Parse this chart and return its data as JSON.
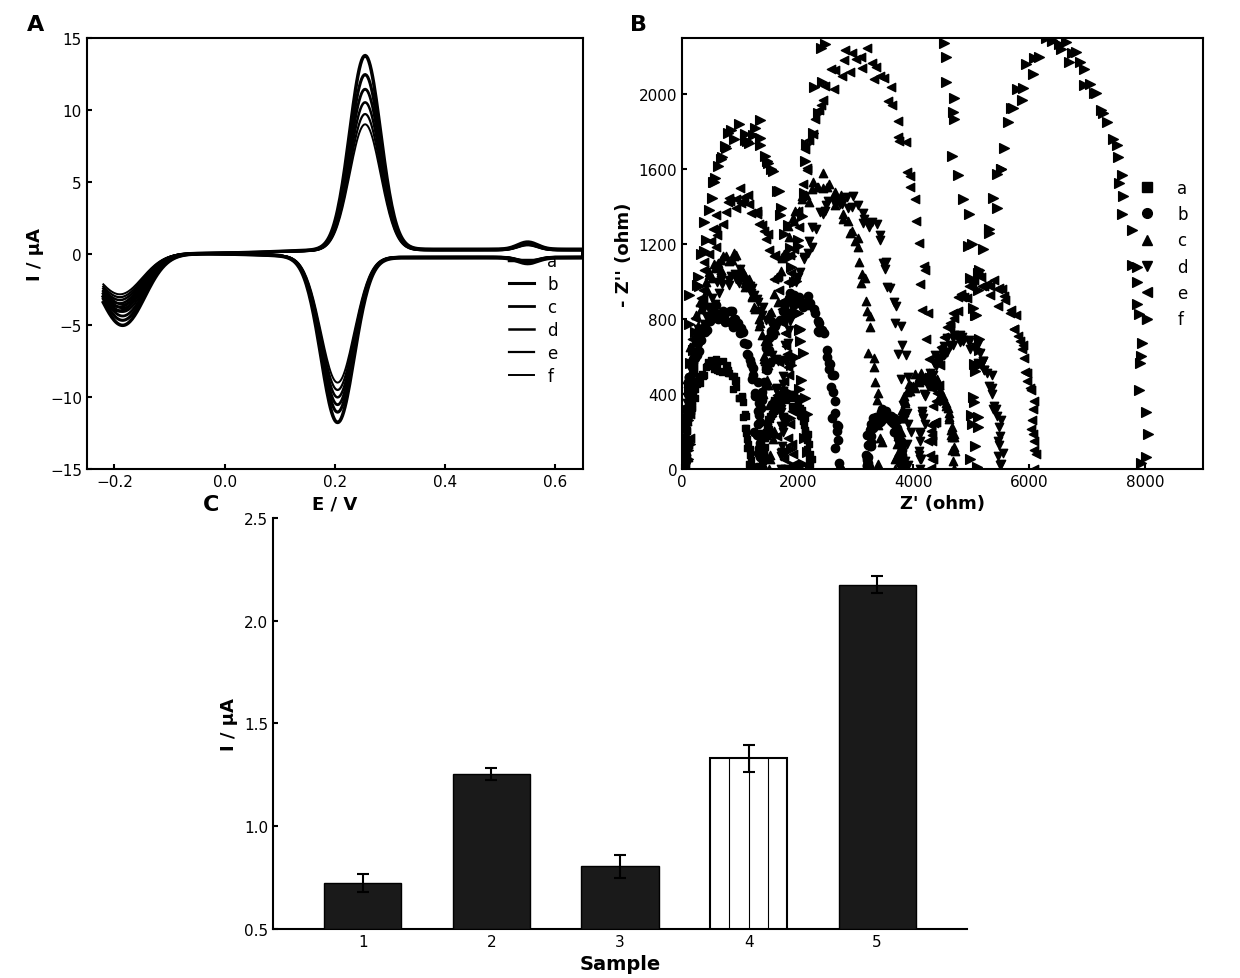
{
  "panel_A_label": "A",
  "panel_B_label": "B",
  "panel_C_label": "C",
  "cv_xlim": [
    -0.25,
    0.65
  ],
  "cv_ylim": [
    -15,
    15
  ],
  "cv_xlabel": "E / V",
  "cv_ylabel": "I / μA",
  "cv_xticks": [
    -0.2,
    0.0,
    0.2,
    0.4,
    0.6
  ],
  "cv_yticks": [
    -15,
    -10,
    -5,
    0,
    5,
    10,
    15
  ],
  "cv_legend_labels": [
    "a",
    "b",
    "c",
    "d",
    "e",
    "f"
  ],
  "eis_xlim": [
    0,
    9000
  ],
  "eis_ylim": [
    0,
    2300
  ],
  "eis_xlabel": "Z' (ohm)",
  "eis_ylabel": "- Z'' (ohm)",
  "eis_xticks": [
    0,
    2000,
    4000,
    6000,
    8000
  ],
  "eis_yticks": [
    0,
    400,
    800,
    1200,
    1600,
    2000
  ],
  "eis_legend_labels": [
    "a",
    "b",
    "c",
    "d",
    "e",
    "f"
  ],
  "bar_categories": [
    "1",
    "2",
    "3",
    "4",
    "5"
  ],
  "bar_values": [
    0.725,
    1.255,
    0.805,
    1.33,
    2.175
  ],
  "bar_errors": [
    0.045,
    0.03,
    0.055,
    0.065,
    0.04
  ],
  "bar_xlabel": "Sample",
  "bar_ylabel": "I / μA",
  "bar_ylim": [
    0.5,
    2.5
  ],
  "bar_yticks": [
    0.5,
    1.0,
    1.5,
    2.0,
    2.5
  ],
  "bar_color_solid": "#1a1a1a",
  "bar_color_open": "#ffffff",
  "background_color": "#ffffff"
}
